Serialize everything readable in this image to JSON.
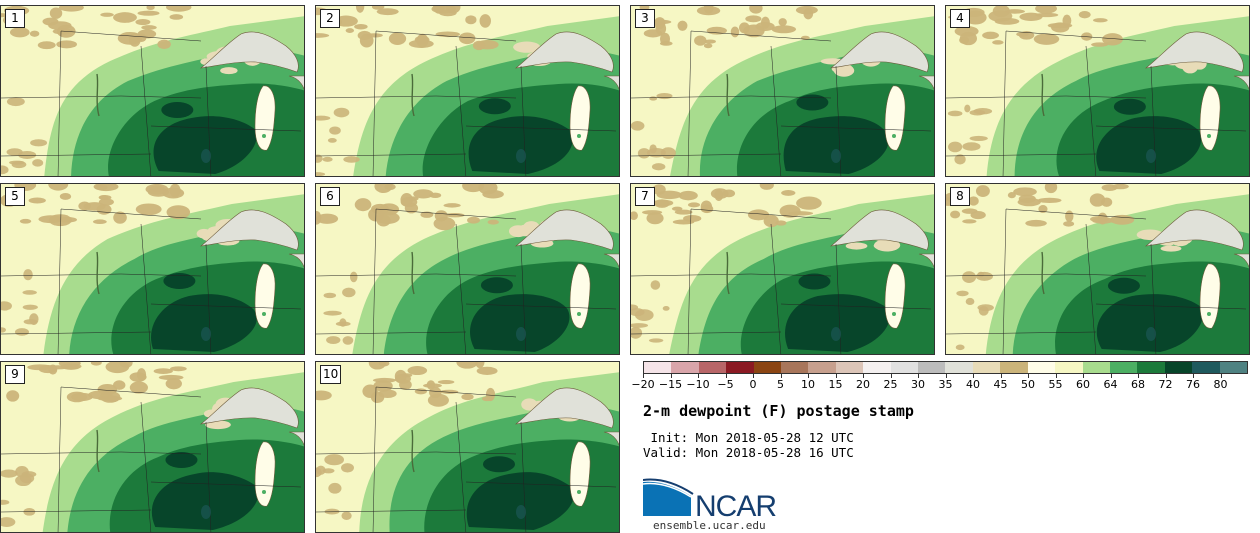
{
  "panels": [
    "1",
    "2",
    "3",
    "4",
    "5",
    "6",
    "7",
    "8",
    "9",
    "10"
  ],
  "colorbar": {
    "colors": [
      "#f5e4e8",
      "#d9a5aa",
      "#b86668",
      "#8b1a23",
      "#8b4513",
      "#a8765b",
      "#c7a08e",
      "#dcc5b8",
      "#f4f0f0",
      "#e1e1e1",
      "#bcbcbc",
      "#e0e1d9",
      "#e8dcb8",
      "#cbb47a",
      "#fffde8",
      "#f6f7c4",
      "#a8dc8e",
      "#4caf63",
      "#1c7a3b",
      "#07452a",
      "#1f5a5e",
      "#4f8282"
    ],
    "tick_labels": [
      "−20",
      "−15",
      "−10",
      "−5",
      "0",
      "5",
      "10",
      "15",
      "20",
      "25",
      "30",
      "35",
      "40",
      "45",
      "50",
      "55",
      "60",
      "64",
      "68",
      "72",
      "76",
      "80"
    ]
  },
  "title": "2-m dewpoint (F) postage stamp",
  "init_label": " Init: Mon 2018-05-28 12 UTC",
  "valid_label": "Valid: Mon 2018-05-28 16 UTC",
  "logo": {
    "text": "NCAR",
    "color": "#0a72b5",
    "dark_color": "#153e6f"
  },
  "website": "ensemble.ucar.edu",
  "map_colors": {
    "base": "#f6f7c4",
    "light_green": "#a8dc8e",
    "mid_green": "#4caf63",
    "dark_green": "#1c7a3b",
    "darkest_green": "#07452a",
    "tan": "#cbb47a",
    "beige": "#e8dcb8",
    "lake_gray": "#e0e1d9",
    "lake_white": "#fffde8"
  }
}
